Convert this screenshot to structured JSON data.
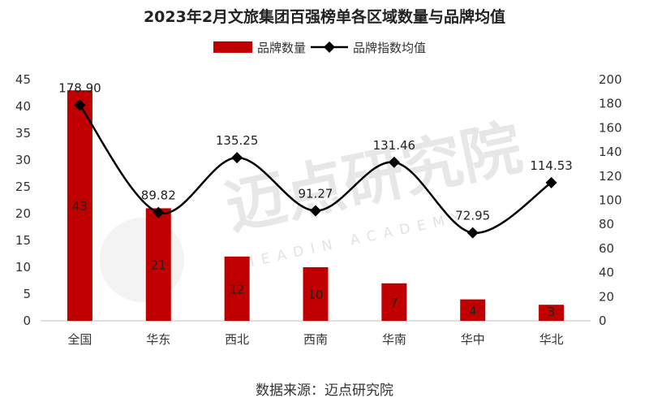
{
  "chart_data": {
    "type": "bar+line",
    "title": "2023年2月文旅集团百强榜单各区域数量与品牌均值",
    "categories": [
      "全国",
      "华东",
      "西北",
      "西南",
      "华南",
      "华中",
      "华北"
    ],
    "series": [
      {
        "name": "品牌数量",
        "type": "bar",
        "axis": "left",
        "values": [
          43,
          21,
          12,
          10,
          7,
          4,
          3
        ]
      },
      {
        "name": "品牌指数均值",
        "type": "line",
        "axis": "right",
        "values": [
          178.9,
          89.82,
          135.25,
          91.27,
          131.46,
          72.95,
          114.53
        ],
        "labels": [
          "178.90",
          "89.82",
          "135.25",
          "91.27",
          "131.46",
          "72.95",
          "114.53"
        ]
      }
    ],
    "ylim_left": [
      0,
      45
    ],
    "yticks_left": [
      0,
      5,
      10,
      15,
      20,
      25,
      30,
      35,
      40,
      45
    ],
    "ylim_right": [
      0,
      200
    ],
    "yticks_right": [
      0,
      20,
      40,
      60,
      80,
      100,
      120,
      140,
      160,
      180,
      200
    ],
    "legend_position": "top-center",
    "grid": false,
    "colors": {
      "bar": "#c00000",
      "line": "#000000"
    }
  },
  "watermark": {
    "text": "迈点研究院",
    "subtext": "MEADIN ACADEMY"
  },
  "source": "数据来源：迈点研究院"
}
